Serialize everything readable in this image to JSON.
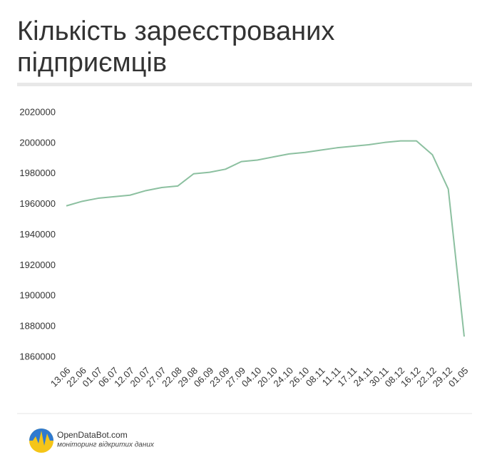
{
  "chart_data": {
    "type": "line",
    "title": "Кількість зареєстрованих підприємців",
    "categories": [
      "13.06",
      "22.06",
      "01.07",
      "06.07",
      "12.07",
      "20.07",
      "27.07",
      "22.08",
      "29.08",
      "06.09",
      "23.09",
      "27.09",
      "04.10",
      "20.10",
      "24.10",
      "26.10",
      "08.11",
      "11.11",
      "17.11",
      "24.11",
      "30.11",
      "08.12",
      "16.12",
      "22.12",
      "29.12",
      "01.05"
    ],
    "values": [
      1959000,
      1962000,
      1964000,
      1965000,
      1966000,
      1969000,
      1971000,
      1972000,
      1980000,
      1981000,
      1983000,
      1988000,
      1989000,
      1991000,
      1993000,
      1994000,
      1995500,
      1997000,
      1998000,
      1999000,
      2000500,
      2001500,
      2001500,
      1992500,
      1970000,
      1873500
    ],
    "color": "#8cc0a0",
    "ylim": [
      1860000,
      2020000
    ],
    "yticks": [
      1860000,
      1880000,
      1900000,
      1920000,
      1940000,
      1960000,
      1980000,
      2000000,
      2020000
    ],
    "grid": false
  },
  "footer": {
    "brand": "OpenDataBot.com",
    "tagline": "моніторинг відкритих даних"
  }
}
